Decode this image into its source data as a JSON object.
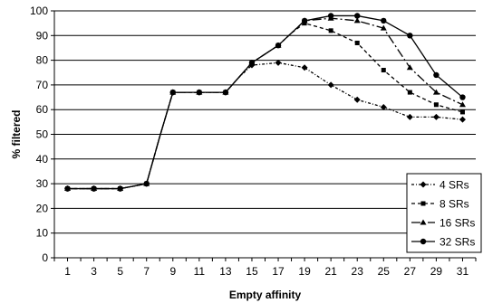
{
  "chart_data": {
    "type": "line",
    "title": "",
    "xlabel": "Empty affinity",
    "ylabel": "% filtered",
    "x": [
      1,
      2,
      3,
      4,
      5,
      6,
      7,
      8,
      9,
      10,
      11,
      12,
      13,
      14,
      15,
      16,
      17,
      18,
      19,
      20,
      21,
      22,
      23,
      24,
      25,
      26,
      27,
      28,
      29,
      30,
      31
    ],
    "xticks": [
      1,
      3,
      5,
      7,
      9,
      11,
      13,
      15,
      17,
      19,
      21,
      23,
      25,
      27,
      29,
      31
    ],
    "xlim": [
      0,
      32
    ],
    "ylim": [
      0,
      100
    ],
    "yticks": [
      0,
      10,
      20,
      30,
      40,
      50,
      60,
      70,
      80,
      90,
      100
    ],
    "grid": "horizontal",
    "legend_position": "bottom-right",
    "series": [
      {
        "name": "4 SRs",
        "dash": "3,2,1,2",
        "marker": "diamond",
        "values": [
          28,
          28,
          28,
          28,
          28,
          29,
          30,
          49,
          67,
          67,
          67,
          67,
          67,
          73,
          78,
          78.5,
          79,
          78,
          77,
          73.5,
          70,
          67,
          64,
          62.5,
          61,
          59,
          57,
          57,
          57,
          56.5,
          56
        ]
      },
      {
        "name": "8 SRs",
        "dash": "4,3",
        "marker": "square",
        "values": [
          28,
          28,
          28,
          28,
          28,
          29,
          30,
          49,
          67,
          67,
          67,
          67,
          67,
          73,
          79,
          82.5,
          86,
          91,
          95,
          93.5,
          92,
          89.5,
          87,
          81.5,
          76,
          71.5,
          67,
          64.5,
          62,
          60.5,
          59
        ]
      },
      {
        "name": "16 SRs",
        "dash": "10,3,2,3",
        "marker": "triangle",
        "values": [
          28,
          28,
          28,
          28,
          28,
          29,
          30,
          49,
          67,
          67,
          67,
          67,
          67,
          73,
          79,
          82.5,
          86,
          91,
          96,
          96.5,
          97,
          96.5,
          96,
          94.5,
          93,
          85,
          77,
          72,
          67,
          64.5,
          62
        ]
      },
      {
        "name": "32 SRs",
        "dash": "",
        "marker": "circle",
        "values": [
          28,
          28,
          28,
          28,
          28,
          29,
          30,
          49,
          67,
          67,
          67,
          67,
          67,
          73,
          79,
          82.5,
          86,
          91,
          96,
          97,
          98,
          98,
          98,
          97,
          96,
          93,
          90,
          82,
          74,
          69.5,
          65
        ]
      }
    ]
  }
}
